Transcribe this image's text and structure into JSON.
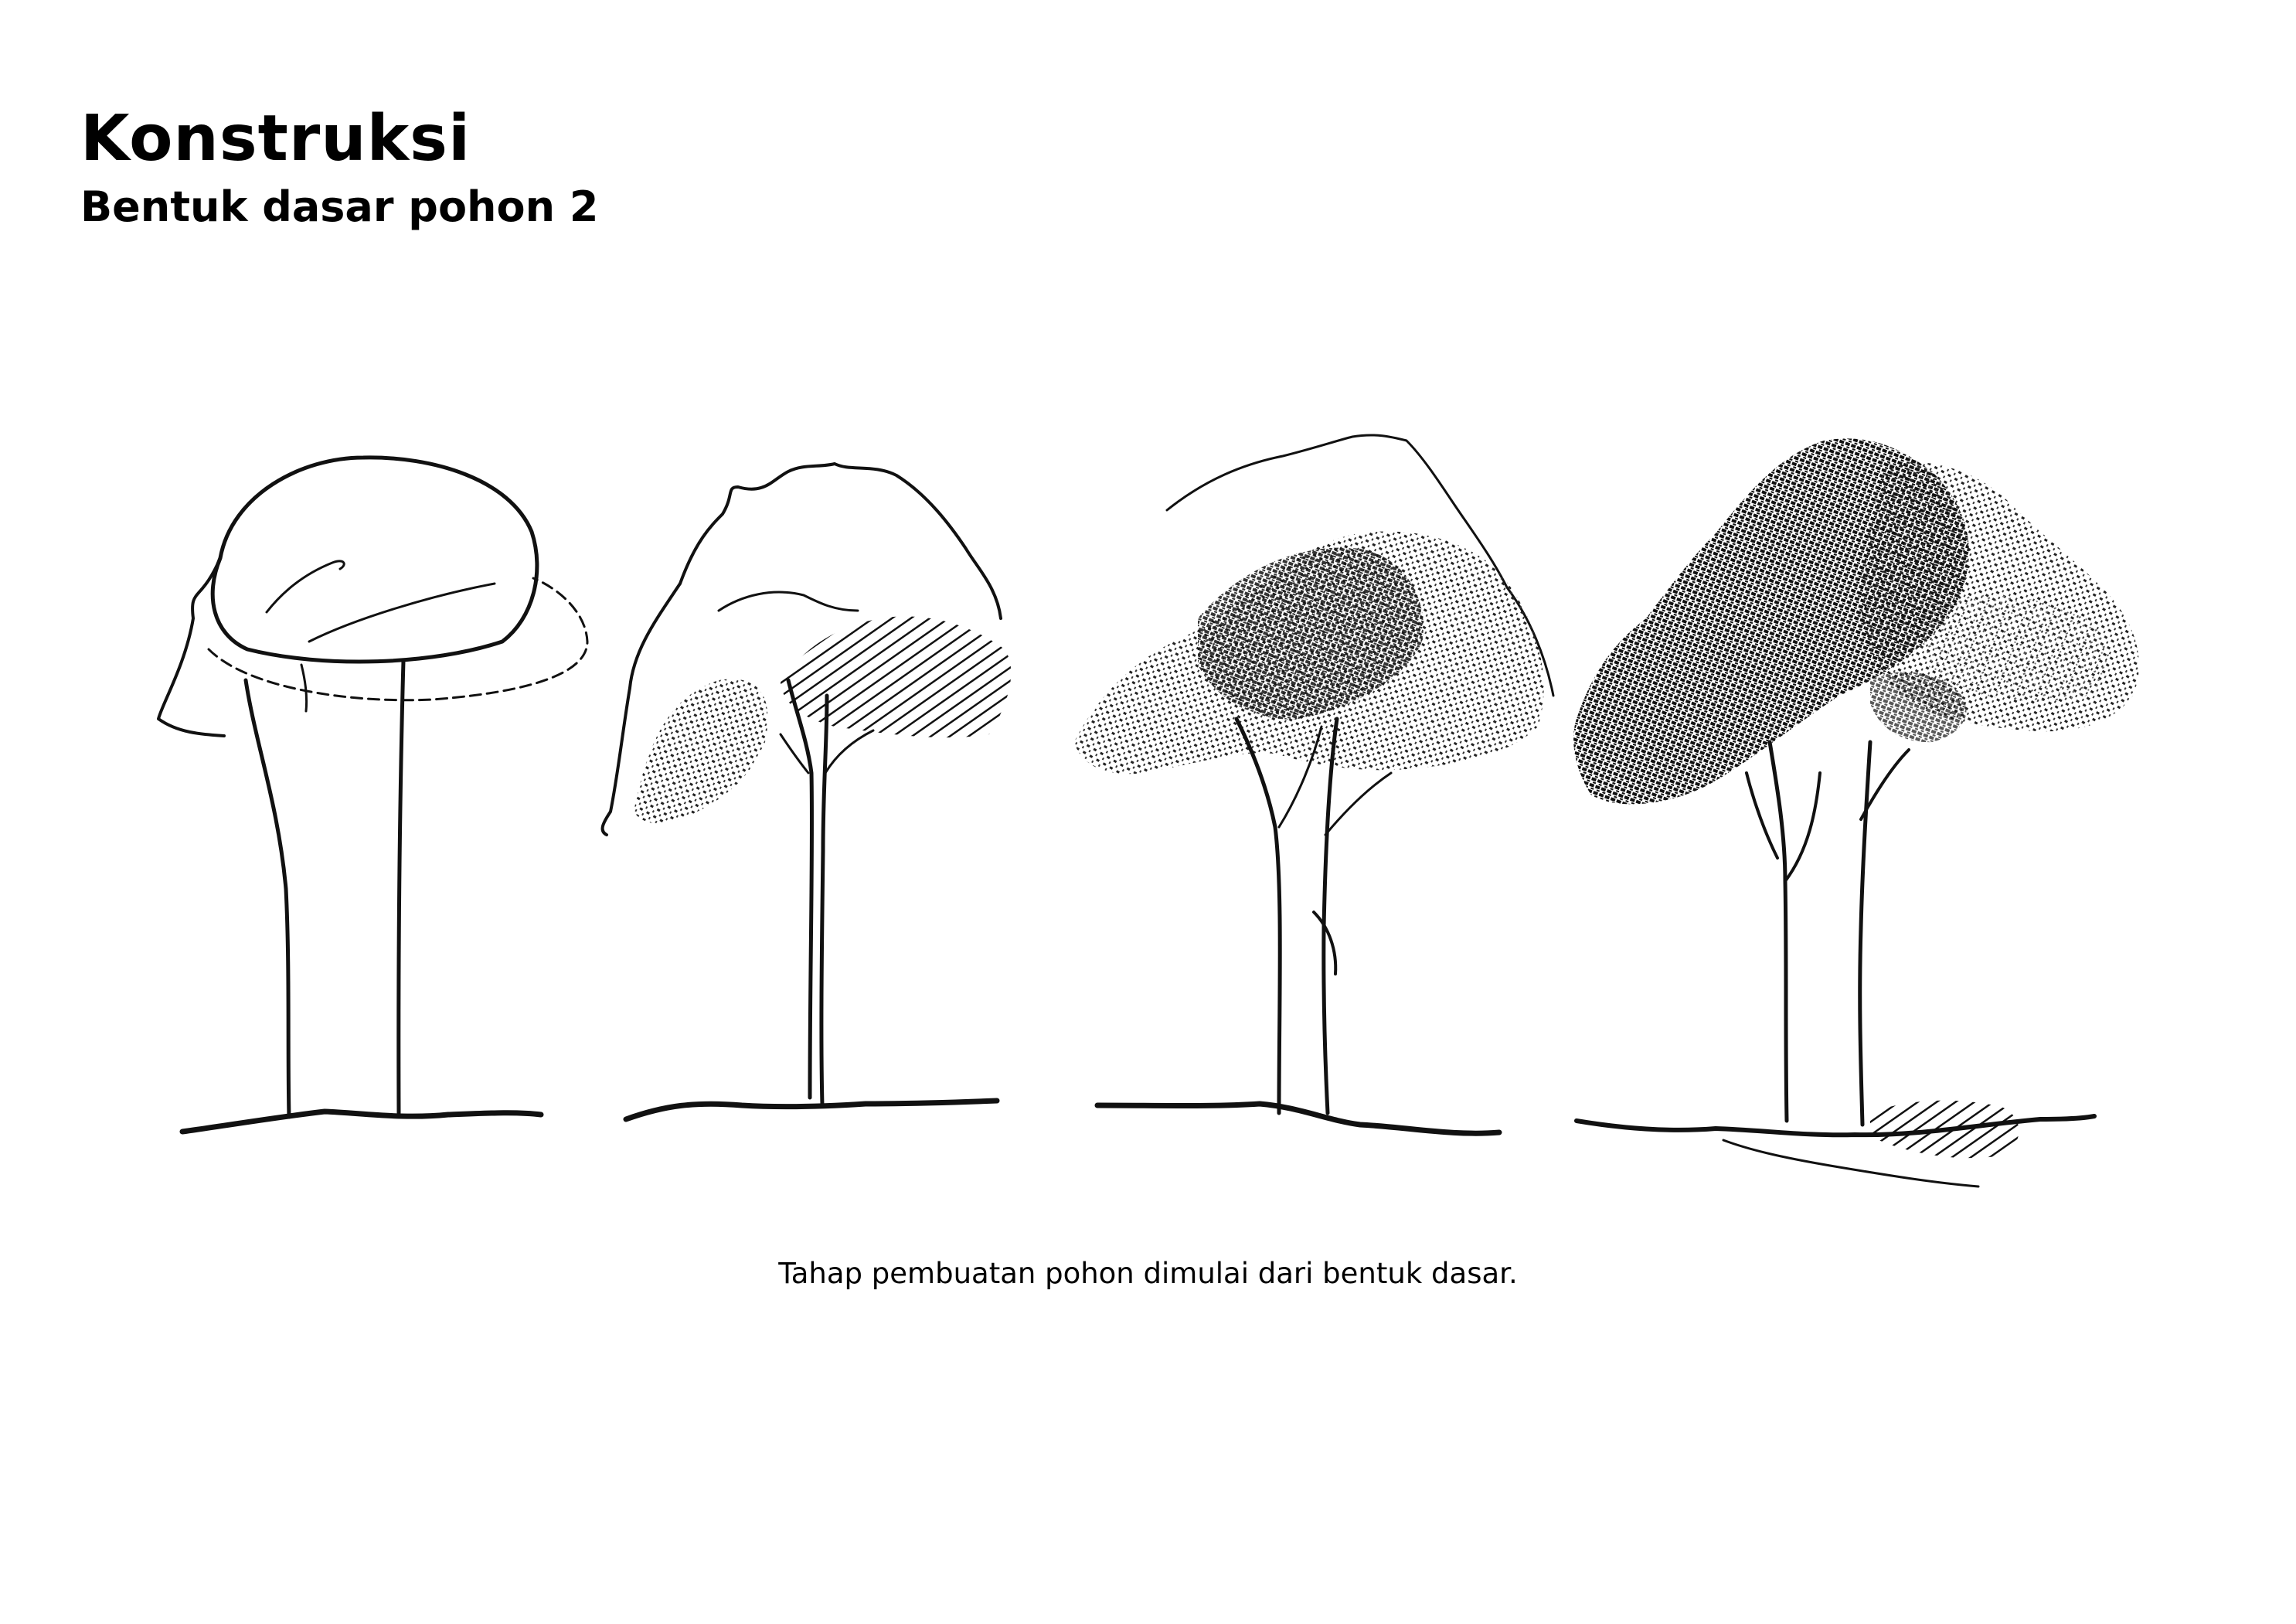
{
  "page": {
    "title": "Konstruksi",
    "subtitle": "Bentuk dasar pohon 2",
    "caption": "Tahap pembuatan pohon dimulai dari bentuk dasar."
  },
  "illustrations": [
    {
      "stage": 1,
      "icon": "tree-sketch-basic-shape-icon"
    },
    {
      "stage": 2,
      "icon": "tree-sketch-canopy-outline-icon"
    },
    {
      "stage": 3,
      "icon": "tree-sketch-shading-icon"
    },
    {
      "stage": 4,
      "icon": "tree-sketch-detailed-foliage-icon"
    }
  ]
}
